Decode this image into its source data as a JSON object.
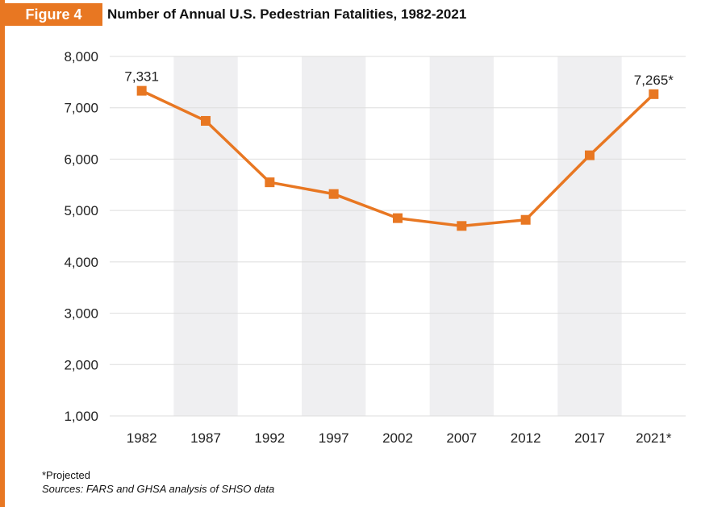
{
  "header": {
    "figure_label": "Figure 4",
    "title": "Number of Annual U.S. Pedestrian Fatalities, 1982-2021"
  },
  "colors": {
    "accent": "#E87722",
    "band": "#EFEFF1",
    "grid": "#DDDDDD"
  },
  "chart_data": {
    "type": "line",
    "title": "Number of Annual U.S. Pedestrian Fatalities, 1982-2021",
    "categories": [
      "1982",
      "1987",
      "1992",
      "1997",
      "2002",
      "2007",
      "2012",
      "2017",
      "2021*"
    ],
    "series": [
      {
        "name": "Pedestrian Fatalities",
        "values": [
          7331,
          6745,
          5549,
          5321,
          4851,
          4699,
          4818,
          6075,
          7265
        ]
      }
    ],
    "data_labels": [
      {
        "index": 0,
        "text": "7,331"
      },
      {
        "index": 8,
        "text": "7,265*"
      }
    ],
    "yticks": [
      "1,000",
      "2,000",
      "3,000",
      "4,000",
      "5,000",
      "6,000",
      "7,000",
      "8,000"
    ],
    "ylim": [
      1000,
      8000
    ],
    "xlabel": "",
    "ylabel": "",
    "grid": true,
    "alternating_bands": true
  },
  "footer": {
    "note": "*Projected",
    "source": "Sources: FARS and GHSA analysis of SHSO data"
  }
}
